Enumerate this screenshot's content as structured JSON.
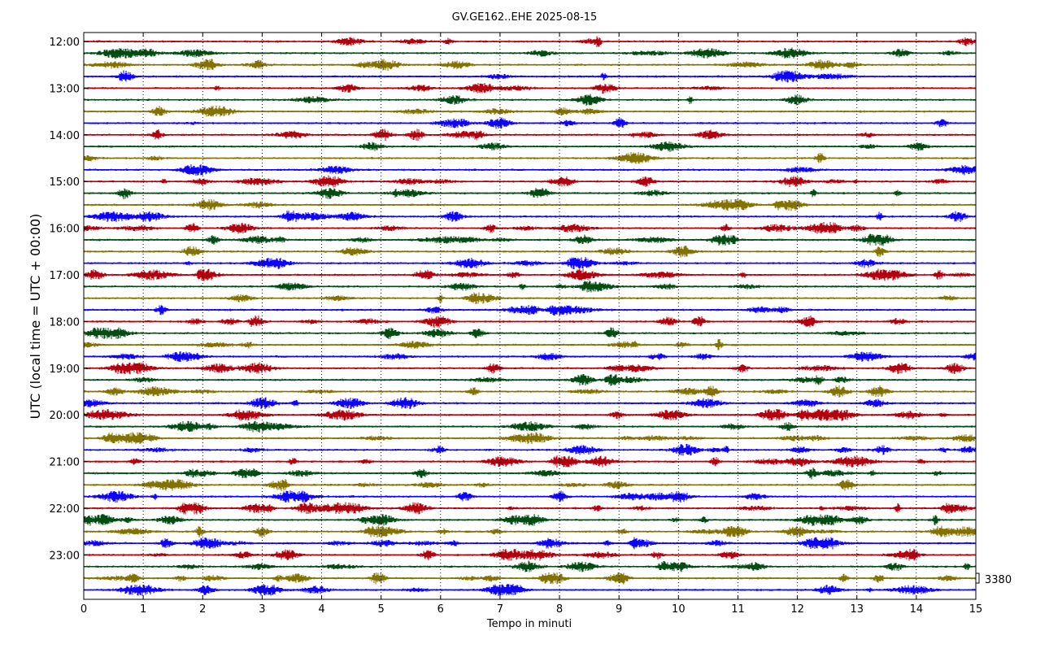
{
  "chart_data": {
    "type": "line",
    "title": "GV.GE162..EHE 2025-08-15",
    "xlabel": "Tempo in minuti",
    "ylabel": "UTC (local time = UTC + 00:00)",
    "xlim": [
      0,
      15
    ],
    "x_ticks": [
      "0",
      "1",
      "2",
      "3",
      "4",
      "5",
      "6",
      "7",
      "8",
      "9",
      "10",
      "11",
      "12",
      "13",
      "14",
      "15"
    ],
    "y_ticks": [
      "12:00",
      "13:00",
      "14:00",
      "15:00",
      "16:00",
      "17:00",
      "18:00",
      "19:00",
      "20:00",
      "21:00",
      "22:00",
      "23:00"
    ],
    "trace_interval_minutes": 15,
    "trace_count": 48,
    "first_trace_time": "12:00",
    "series_colors": [
      "#b2000f",
      "#004c12",
      "#847200",
      "#0e01ff"
    ],
    "scale_label": "3380",
    "vertical_grid": true,
    "grid_style": "dotted"
  }
}
